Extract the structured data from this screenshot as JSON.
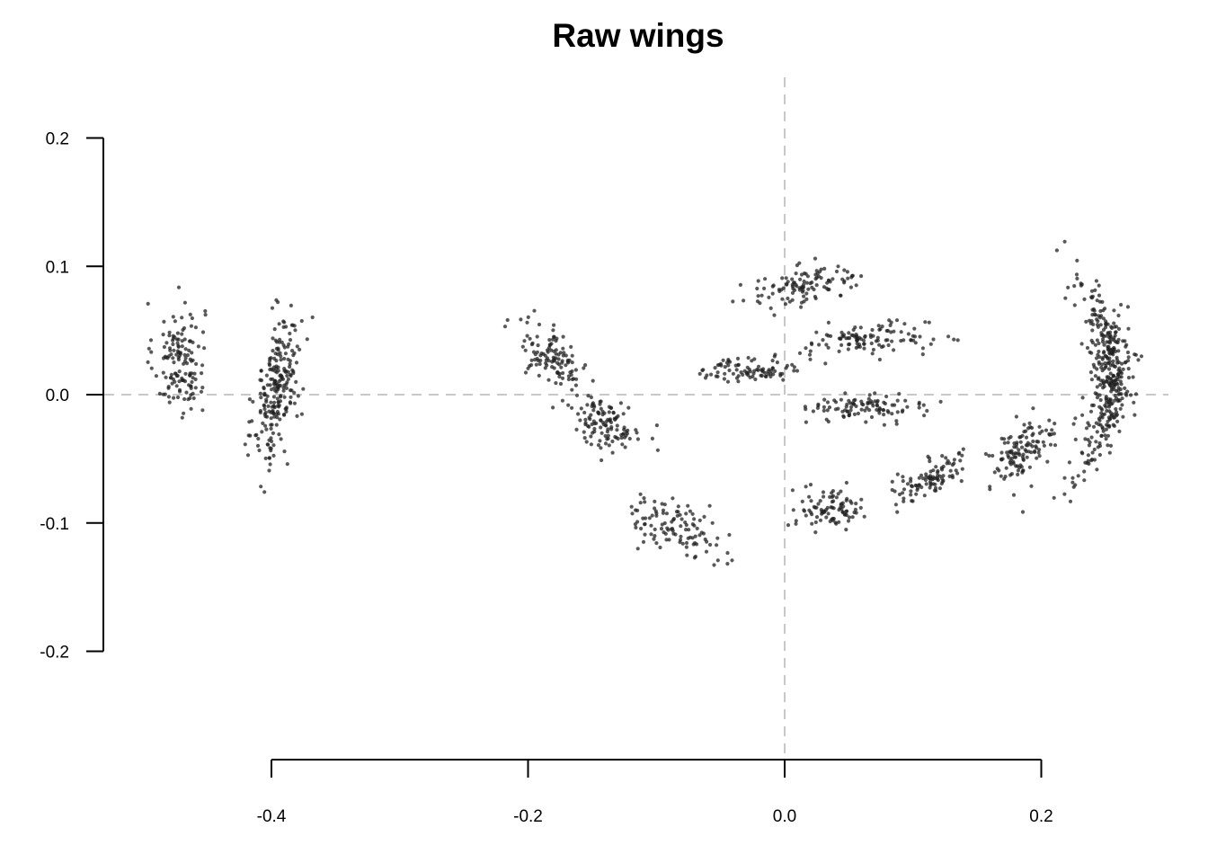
{
  "chart_data": {
    "type": "scatter",
    "title": "Raw wings",
    "xlabel": "",
    "ylabel": "",
    "xlim": [
      -0.5,
      0.3
    ],
    "ylim": [
      -0.2,
      0.2
    ],
    "x_ticks": [
      -0.4,
      -0.2,
      0.0,
      0.2
    ],
    "x_tick_labels": [
      "-0.4",
      "-0.2",
      "0.0",
      "0.2"
    ],
    "y_ticks": [
      0.2,
      0.1,
      0.0,
      -0.1,
      -0.2
    ],
    "y_tick_labels": [
      "0.2",
      "0.1",
      "0.0",
      "-0.1",
      "-0.2"
    ],
    "reference_lines": {
      "x": 0.0,
      "y": 0.0,
      "style": "dashed",
      "color": "#c8c8c8"
    },
    "grid": false,
    "point_color": "#222222",
    "series": [
      {
        "center": [
          -0.472,
          0.028
        ],
        "spread": [
          0.01,
          0.022
        ],
        "tilt": 0.0,
        "count": 140
      },
      {
        "center": [
          -0.395,
          0.005
        ],
        "spread": [
          0.009,
          0.026
        ],
        "tilt": 1.3,
        "count": 230
      },
      {
        "center": [
          -0.18,
          0.03
        ],
        "spread": [
          0.014,
          0.011
        ],
        "tilt": -0.3,
        "count": 110
      },
      {
        "center": [
          -0.14,
          -0.022
        ],
        "spread": [
          0.014,
          0.01
        ],
        "tilt": -0.3,
        "count": 120
      },
      {
        "center": [
          -0.085,
          -0.104
        ],
        "spread": [
          0.019,
          0.01
        ],
        "tilt": -0.3,
        "count": 110
      },
      {
        "center": [
          -0.025,
          0.02
        ],
        "spread": [
          0.02,
          0.005
        ],
        "tilt": 0.05,
        "count": 90
      },
      {
        "center": [
          0.015,
          0.085
        ],
        "spread": [
          0.024,
          0.007
        ],
        "tilt": 0.15,
        "count": 110
      },
      {
        "center": [
          0.065,
          0.043
        ],
        "spread": [
          0.024,
          0.006
        ],
        "tilt": 0.05,
        "count": 110
      },
      {
        "center": [
          0.065,
          -0.01
        ],
        "spread": [
          0.022,
          0.005
        ],
        "tilt": 0.0,
        "count": 100
      },
      {
        "center": [
          0.035,
          -0.088
        ],
        "spread": [
          0.013,
          0.008
        ],
        "tilt": 0.0,
        "count": 90
      },
      {
        "center": [
          0.115,
          -0.065
        ],
        "spread": [
          0.016,
          0.007
        ],
        "tilt": 0.45,
        "count": 100
      },
      {
        "center": [
          0.185,
          -0.045
        ],
        "spread": [
          0.013,
          0.01
        ],
        "tilt": 0.5,
        "count": 120
      },
      {
        "center": [
          0.245,
          0.015
        ],
        "spread": [
          0.008,
          0.038
        ],
        "tilt": 0.0,
        "count": 380,
        "arc": true
      }
    ]
  }
}
